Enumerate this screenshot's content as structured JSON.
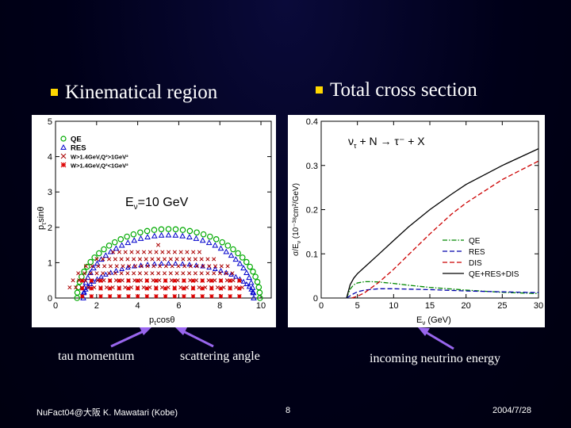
{
  "headings": {
    "left": "Kinematical region",
    "right": "Total cross section"
  },
  "captions": {
    "tau": "tau momentum",
    "angle": "scattering angle",
    "energy": "incoming neutrino energy"
  },
  "footer": {
    "left": "NuFact04@大阪 K. Mawatari (Kobe)",
    "page": "8",
    "date": "2004/7/28"
  },
  "colors": {
    "bullet": "#ffd700",
    "arrow": "#9966ee",
    "qe": "#00aa00",
    "res": "#0000cc",
    "dis_high": "#aa0000",
    "dis_low": "#dd0000"
  },
  "chart_data": [
    {
      "type": "scatter",
      "annotation_main": "E",
      "annotation_sub": "ν",
      "annotation_rest": "=10 GeV",
      "xlabel": "p",
      "xlabel_sub": "τ",
      "xlabel_rest": "cosθ",
      "ylabel": "p",
      "ylabel_sub": "τ",
      "ylabel_rest": "sinθ",
      "xlim": [
        0,
        10.5
      ],
      "ylim": [
        0,
        5
      ],
      "xticks": [
        "0",
        "2",
        "4",
        "6",
        "8",
        "10"
      ],
      "yticks": [
        "0",
        "1",
        "2",
        "3",
        "4",
        "5"
      ],
      "legend_position": "top-left",
      "legend": [
        {
          "marker": "circle",
          "label": "QE"
        },
        {
          "marker": "triangle",
          "label": "RES"
        },
        {
          "marker": "x",
          "label": "W>1.4GeV,Q²>1GeV²"
        },
        {
          "marker": "star",
          "label": "W>1.4GeV,Q²<1GeV²"
        }
      ],
      "series": [
        {
          "name": "QE",
          "marker": "circle",
          "center_x": 5.5,
          "radius_x": 4.45,
          "radius_y": 1.95,
          "x_range": [
            1.1,
            9.9
          ]
        },
        {
          "name": "RES",
          "marker": "triangle",
          "center_x": 5.5,
          "radius_x": 4.15,
          "radius_y": 1.78,
          "x_range": [
            1.4,
            9.6
          ]
        },
        {
          "name": "W>1.4GeV,Q²>1GeV²",
          "marker": "x",
          "center_x": 5.0,
          "radius_x": 4.4,
          "radius_y": 1.5,
          "x_range": [
            1.3,
            8.8
          ],
          "y_min": 0.3
        },
        {
          "name": "W>1.4GeV,Q²<1GeV²",
          "marker": "star",
          "x_range": [
            1.3,
            9.3
          ],
          "y_range": [
            0,
            0.55
          ]
        }
      ]
    },
    {
      "type": "line",
      "annotation_main": "ν",
      "annotation_sub": "τ",
      "annotation_rest": " + N → τ⁻ + X",
      "xlabel": "E",
      "xlabel_sub": "ν",
      "xlabel_rest": " (GeV)",
      "ylabel": "σ/E",
      "ylabel_sub": "ν",
      "ylabel_rest": " (10⁻³⁸cm²/GeV)",
      "xlim": [
        0,
        30
      ],
      "ylim": [
        0,
        0.4
      ],
      "xticks": [
        "0",
        "5",
        "10",
        "15",
        "20",
        "25",
        "30"
      ],
      "yticks": [
        "0",
        "0.1",
        "0.2",
        "0.3",
        "0.4"
      ],
      "legend_position": "bottom-right",
      "series": [
        {
          "name": "QE",
          "dash": "dashdot",
          "color": "#008800",
          "x": [
            3.5,
            4,
            4.5,
            5,
            6,
            7,
            8,
            10,
            12,
            15,
            20,
            25,
            30
          ],
          "y": [
            0,
            0.02,
            0.03,
            0.034,
            0.037,
            0.037,
            0.036,
            0.033,
            0.029,
            0.024,
            0.018,
            0.013,
            0.01
          ]
        },
        {
          "name": "RES",
          "dash": "dashed",
          "color": "#0000aa",
          "x": [
            3.5,
            4,
            4.5,
            5,
            6,
            8,
            10,
            12,
            15,
            20,
            25,
            30
          ],
          "y": [
            0,
            0.005,
            0.01,
            0.014,
            0.018,
            0.021,
            0.021,
            0.02,
            0.019,
            0.016,
            0.014,
            0.012
          ]
        },
        {
          "name": "DIS",
          "dash": "dashed",
          "color": "#cc0000",
          "x": [
            4.2,
            5,
            6,
            8,
            10,
            12,
            15,
            18,
            20,
            25,
            30
          ],
          "y": [
            0,
            0.004,
            0.012,
            0.036,
            0.065,
            0.097,
            0.145,
            0.19,
            0.215,
            0.268,
            0.31
          ]
        },
        {
          "name": "QE+RES+DIS",
          "dash": "solid",
          "color": "#000000",
          "x": [
            3.5,
            4,
            4.5,
            5,
            6,
            8,
            10,
            12,
            15,
            18,
            20,
            25,
            30
          ],
          "y": [
            0,
            0.03,
            0.045,
            0.055,
            0.07,
            0.1,
            0.13,
            0.16,
            0.2,
            0.235,
            0.257,
            0.3,
            0.338
          ]
        }
      ]
    }
  ]
}
